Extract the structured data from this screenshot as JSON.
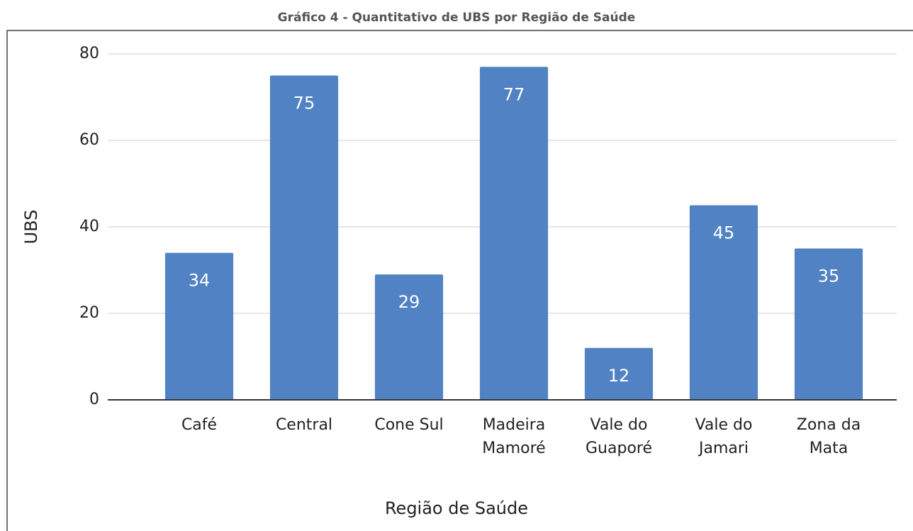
{
  "chart_data": {
    "type": "bar",
    "title": "Gráfico 4 - Quantitativo de UBS por Região de Saúde",
    "x_label": "Região de Saúde",
    "y_label": "UBS",
    "categories": [
      "Café",
      "Central",
      "Cone Sul",
      "Madeira\nMamoré",
      "Vale do\nGuaporé",
      "Vale do\nJamari",
      "Zona da\nMata"
    ],
    "values": [
      34,
      75,
      29,
      77,
      12,
      45,
      35
    ],
    "color": "#5183c4",
    "ylim": [
      0,
      80
    ],
    "yticks": [
      0,
      20,
      40,
      60,
      80
    ],
    "grid": true
  }
}
